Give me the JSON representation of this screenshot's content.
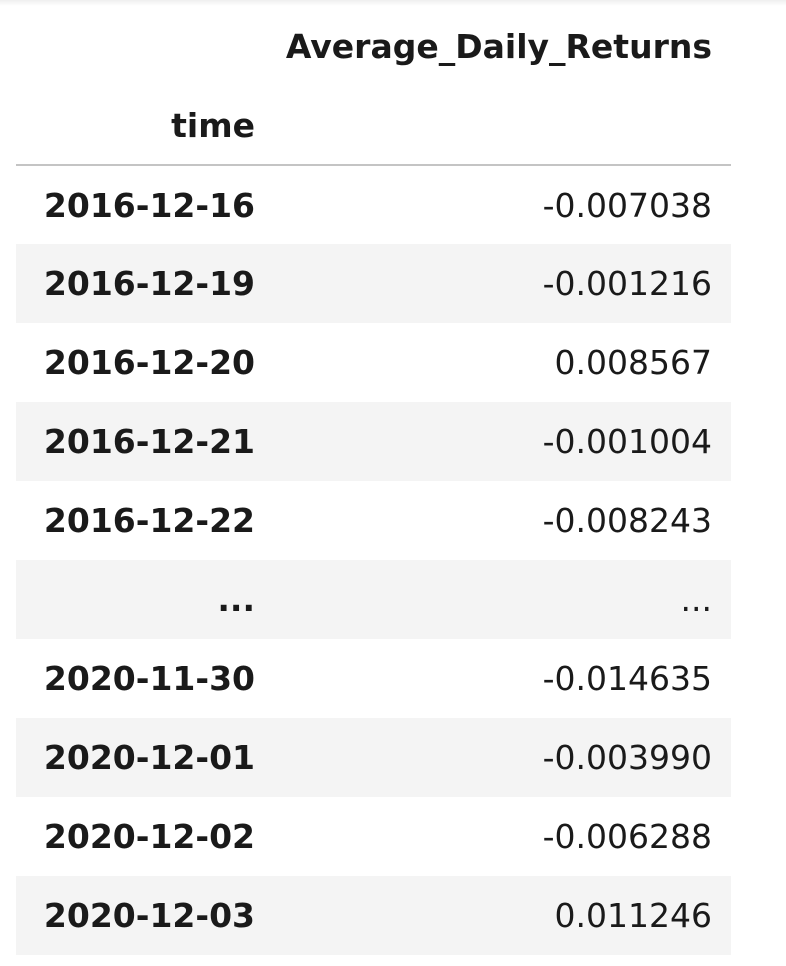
{
  "table": {
    "column_header": "Average_Daily_Returns",
    "index_name": "time",
    "rows": [
      {
        "index": "2016-12-16",
        "value": "-0.007038"
      },
      {
        "index": "2016-12-19",
        "value": "-0.001216"
      },
      {
        "index": "2016-12-20",
        "value": "0.008567"
      },
      {
        "index": "2016-12-21",
        "value": "-0.001004"
      },
      {
        "index": "2016-12-22",
        "value": "-0.008243"
      },
      {
        "index": "...",
        "value": "..."
      },
      {
        "index": "2020-11-30",
        "value": "-0.014635"
      },
      {
        "index": "2020-12-01",
        "value": "-0.003990"
      },
      {
        "index": "2020-12-02",
        "value": "-0.006288"
      },
      {
        "index": "2020-12-03",
        "value": "0.011246"
      }
    ]
  }
}
